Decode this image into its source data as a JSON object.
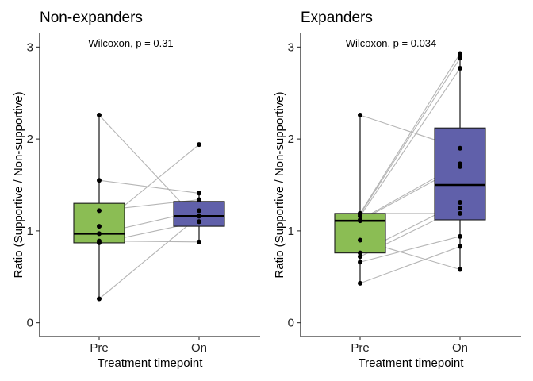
{
  "chart_data": [
    {
      "type": "box",
      "title": "Non-expanders",
      "annotation": "Wilcoxon, p = 0.31",
      "xlabel": "Treatment timepoint",
      "ylabel": "Ratio (Supportive / Non-supportive)",
      "categories": [
        "Pre",
        "On"
      ],
      "ylim": [
        -0.15,
        3.15
      ],
      "yticks": [
        0,
        1,
        2,
        3
      ],
      "grid": false,
      "boxes": [
        {
          "category": "Pre",
          "q1": 0.87,
          "median": 0.97,
          "q3": 1.3,
          "whisker_low": 0.26,
          "whisker_high": 2.26,
          "color": "#8bbd54"
        },
        {
          "category": "On",
          "q1": 1.05,
          "median": 1.16,
          "q3": 1.32,
          "whisker_low": 0.88,
          "whisker_high": 1.41,
          "color": "#6060aa"
        }
      ],
      "pairs": [
        [
          2.26,
          1.1
        ],
        [
          1.55,
          1.41
        ],
        [
          1.22,
          1.34
        ],
        [
          1.05,
          1.94
        ],
        [
          0.97,
          1.22
        ],
        [
          0.87,
          1.1
        ],
        [
          0.89,
          0.88
        ],
        [
          0.26,
          1.16
        ]
      ]
    },
    {
      "type": "box",
      "title": "Expanders",
      "annotation": "Wilcoxon, p = 0.034",
      "xlabel": "Treatment timepoint",
      "ylabel": "Ratio (Supportive / Non-supportive)",
      "categories": [
        "Pre",
        "On"
      ],
      "ylim": [
        -0.15,
        3.15
      ],
      "yticks": [
        0,
        1,
        2,
        3
      ],
      "grid": false,
      "boxes": [
        {
          "category": "Pre",
          "q1": 0.76,
          "median": 1.11,
          "q3": 1.19,
          "whisker_low": 0.43,
          "whisker_high": 2.26,
          "color": "#8bbd54"
        },
        {
          "category": "On",
          "q1": 1.12,
          "median": 1.5,
          "q3": 2.12,
          "whisker_low": 0.58,
          "whisker_high": 2.93,
          "color": "#6060aa"
        }
      ],
      "pairs": [
        [
          2.26,
          1.9
        ],
        [
          1.19,
          2.93
        ],
        [
          1.18,
          2.88
        ],
        [
          1.16,
          2.77
        ],
        [
          1.12,
          1.73
        ],
        [
          1.11,
          1.7
        ],
        [
          1.19,
          1.19
        ],
        [
          0.9,
          0.58
        ],
        [
          0.76,
          1.31
        ],
        [
          0.72,
          1.25
        ],
        [
          0.66,
          0.94
        ],
        [
          0.43,
          0.83
        ]
      ]
    }
  ]
}
